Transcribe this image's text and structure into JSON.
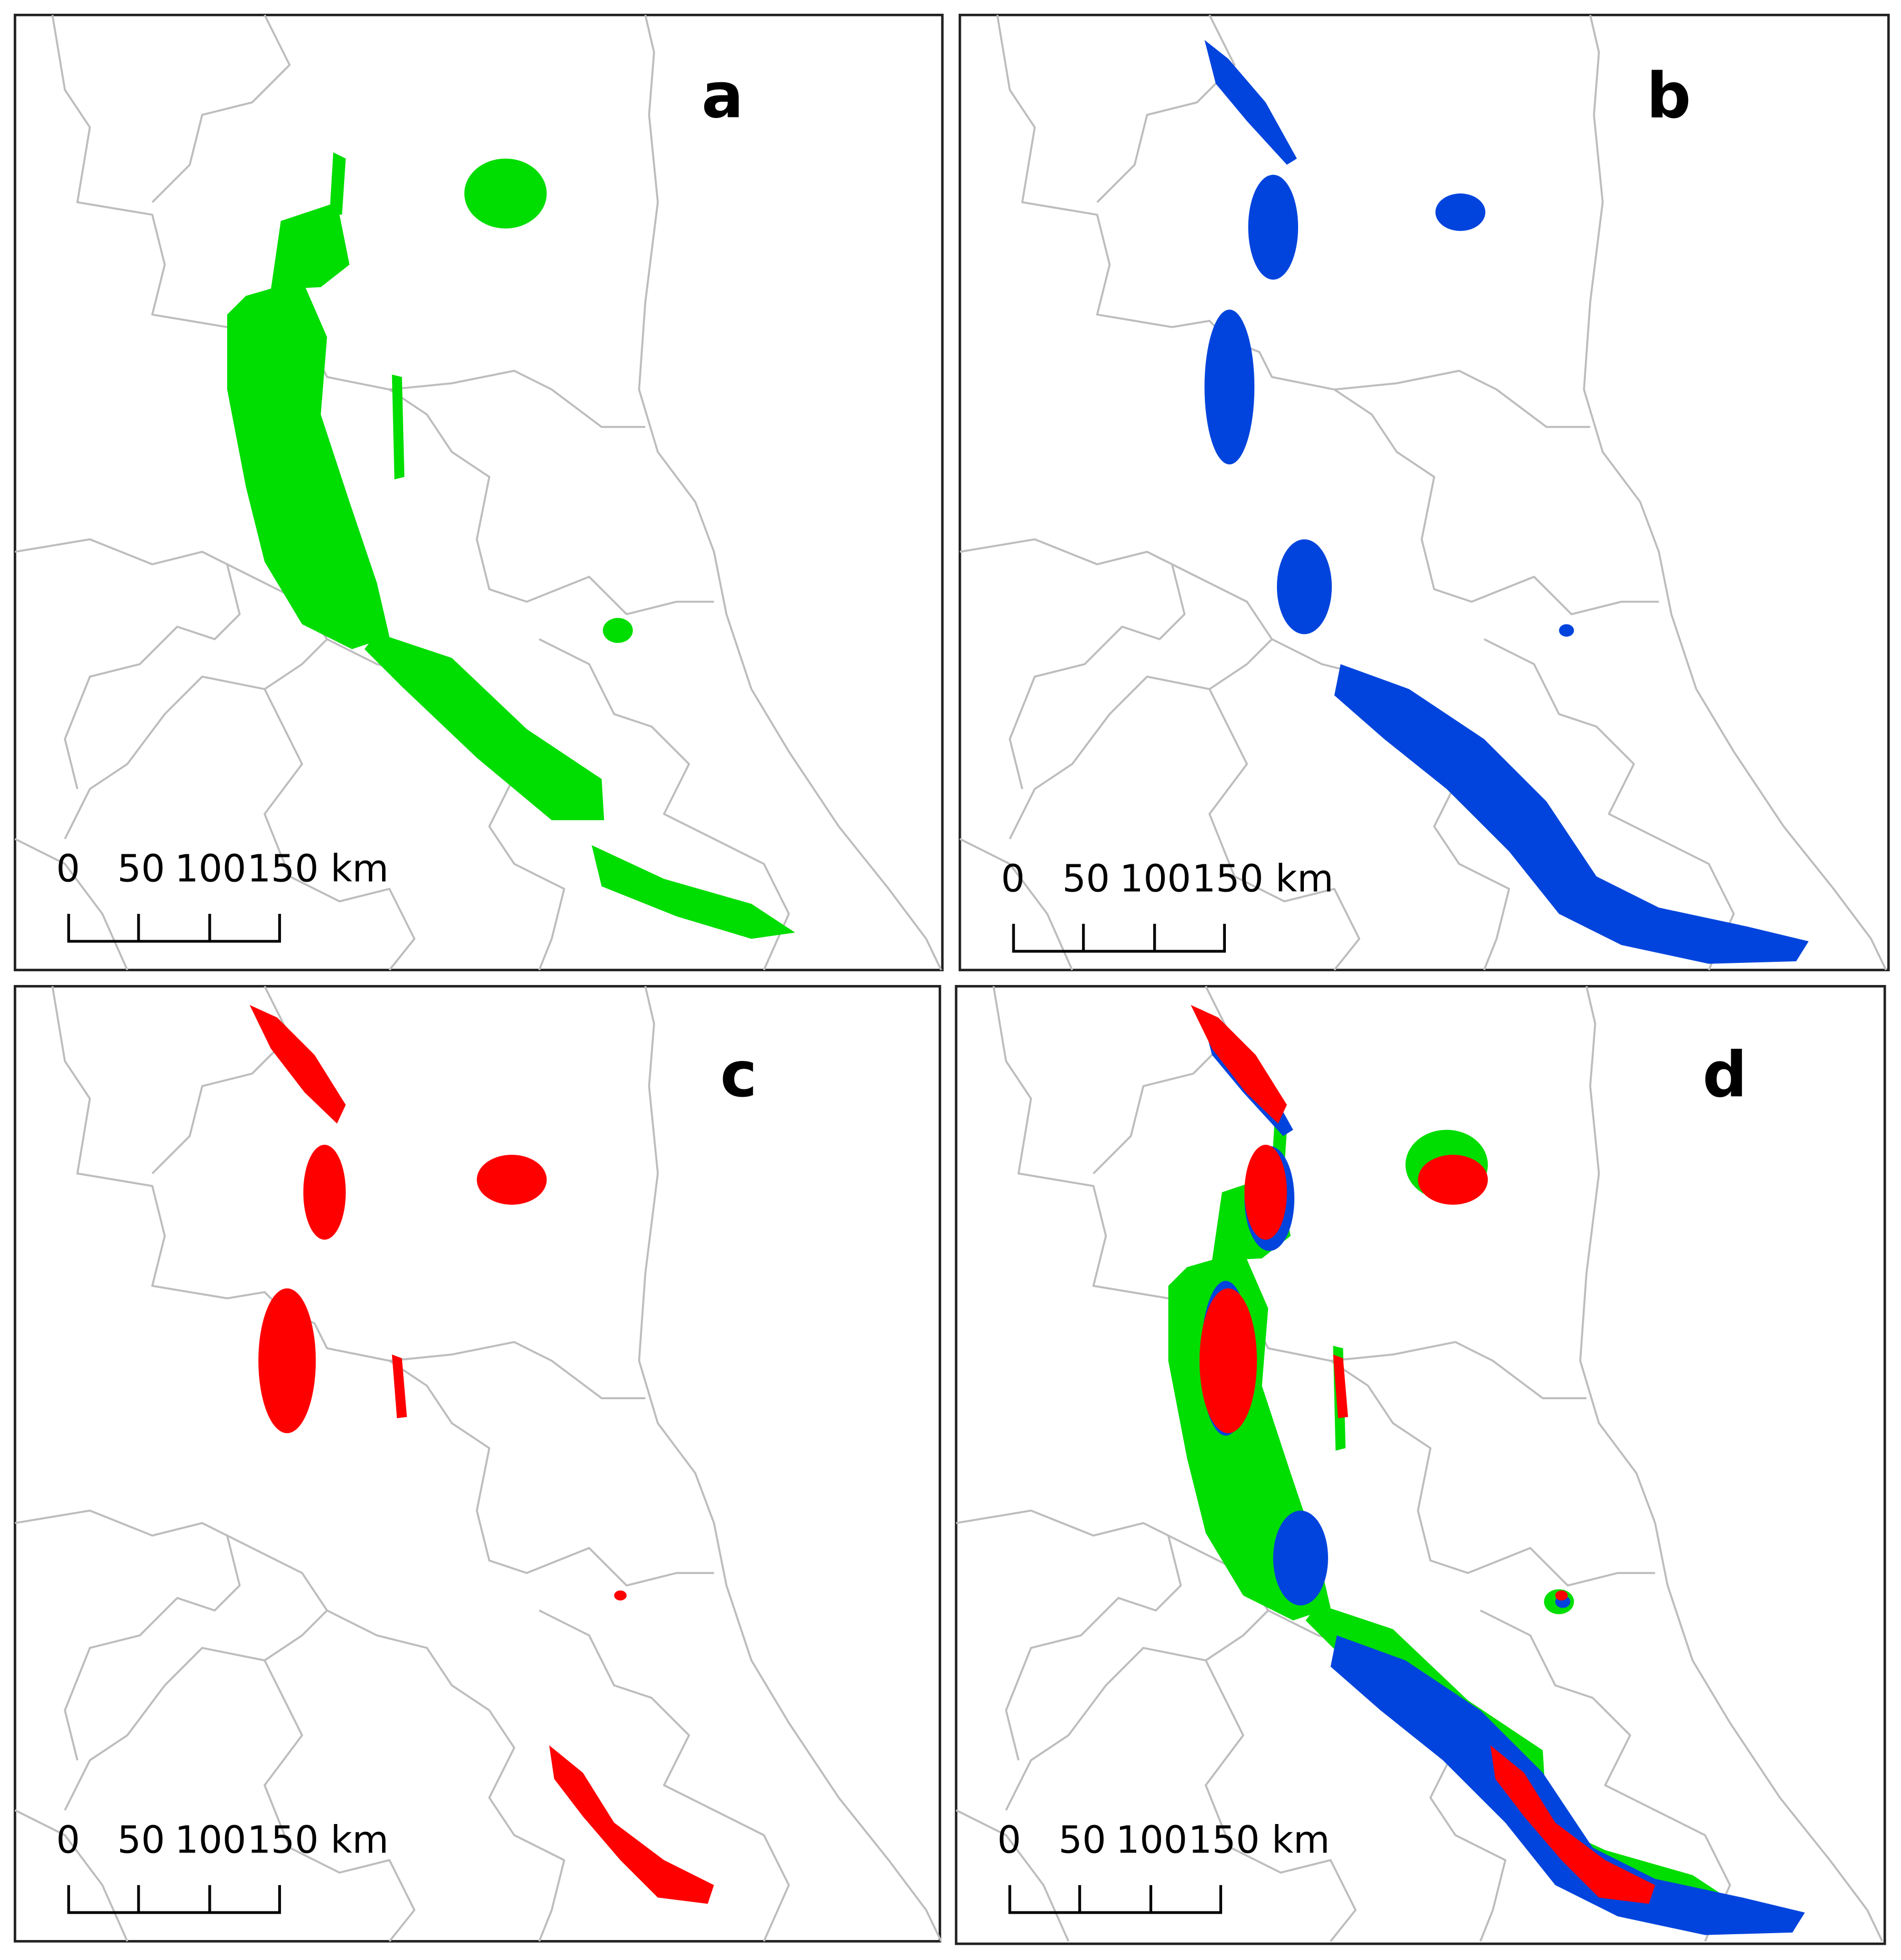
{
  "figure": {
    "panels": [
      {
        "label": "a",
        "layers": [
          "green"
        ]
      },
      {
        "label": "b",
        "layers": [
          "blue"
        ]
      },
      {
        "label": "c",
        "layers": [
          "red"
        ]
      },
      {
        "label": "d",
        "layers": [
          "green",
          "blue",
          "red"
        ]
      }
    ],
    "scale_bar": {
      "ticks": [
        "0",
        "50",
        "100",
        "150 km"
      ]
    },
    "colors": {
      "green": "#00dd00",
      "blue": "#0044dd",
      "red": "#ff0000",
      "boundary": "#bdbdbd"
    }
  }
}
